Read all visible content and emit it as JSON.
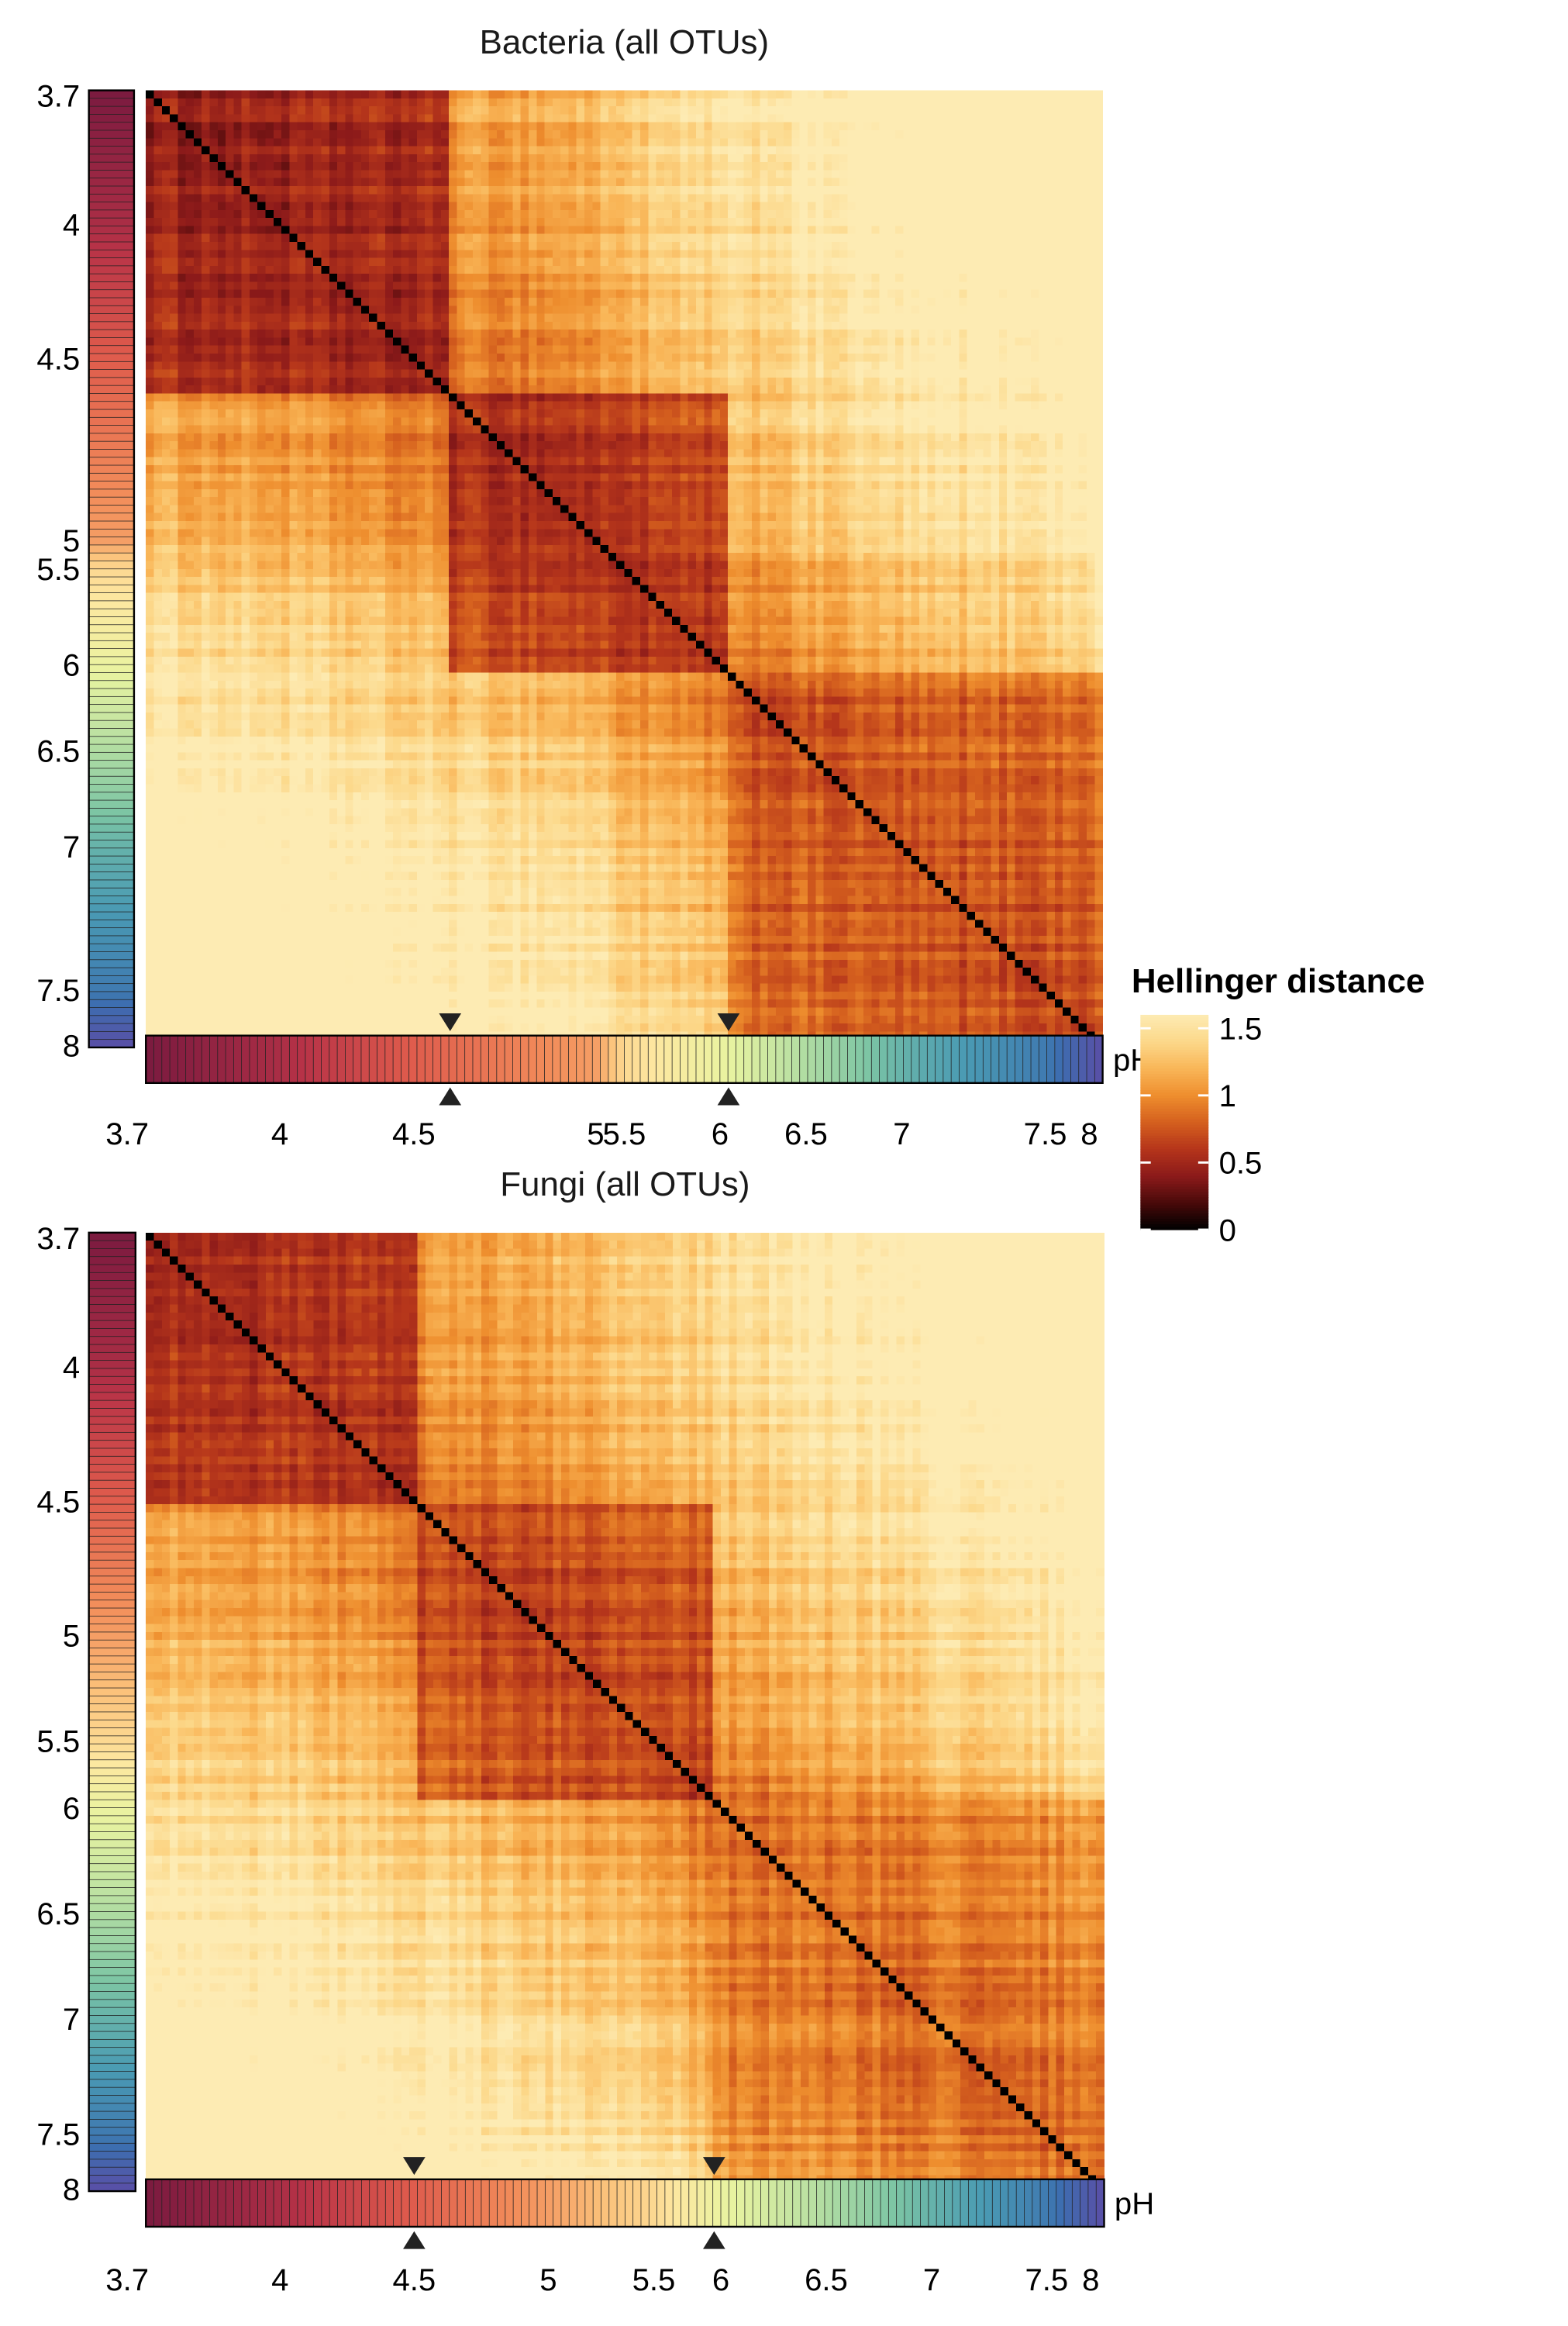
{
  "chart_data": [
    {
      "type": "heatmap",
      "title": "Bacteria (all OTUs)",
      "xlabel": "pH",
      "ylabel": "",
      "n_samples": 120,
      "ph_range": [
        3.7,
        8
      ],
      "ph_ticks": [
        3.7,
        4,
        4.5,
        5,
        5.5,
        6,
        6.5,
        7,
        7.5,
        8
      ],
      "ph_tick_labels": [
        "3.7",
        "4",
        "4.5",
        "5",
        "5.5",
        "6",
        "6.5",
        "7",
        "7.5",
        "8"
      ],
      "ph_profile": [
        [
          0,
          3.7
        ],
        [
          0.14,
          4
        ],
        [
          0.28,
          4.5
        ],
        [
          0.47,
          5
        ],
        [
          0.5,
          5.5
        ],
        [
          0.6,
          6
        ],
        [
          0.69,
          6.5
        ],
        [
          0.79,
          7
        ],
        [
          0.94,
          7.5
        ],
        [
          1,
          8
        ]
      ],
      "breakpoints_ph": [
        4.6,
        6.05
      ],
      "clusters": [
        {
          "from_ph": 3.7,
          "to_ph": 4.6,
          "within_distance": 0.45
        },
        {
          "from_ph": 4.6,
          "to_ph": 6.05,
          "within_distance": 0.55
        },
        {
          "from_ph": 6.05,
          "to_ph": 8,
          "within_distance": 0.7
        }
      ],
      "distance_range": [
        0,
        1.6
      ]
    },
    {
      "type": "heatmap",
      "title": "Fungi (all OTUs)",
      "xlabel": "pH",
      "ylabel": "",
      "n_samples": 120,
      "ph_range": [
        3.7,
        8
      ],
      "ph_ticks": [
        3.7,
        4,
        4.5,
        5,
        5.5,
        6,
        6.5,
        7,
        7.5,
        8
      ],
      "ph_tick_labels": [
        "3.7",
        "4",
        "4.5",
        "5",
        "5.5",
        "6",
        "6.5",
        "7",
        "7.5",
        "8"
      ],
      "ph_profile": [
        [
          0,
          3.7
        ],
        [
          0.14,
          4
        ],
        [
          0.28,
          4.5
        ],
        [
          0.42,
          5
        ],
        [
          0.53,
          5.5
        ],
        [
          0.6,
          6
        ],
        [
          0.71,
          6.5
        ],
        [
          0.82,
          7
        ],
        [
          0.94,
          7.5
        ],
        [
          1,
          8
        ]
      ],
      "breakpoints_ph": [
        4.5,
        5.95
      ],
      "clusters": [
        {
          "from_ph": 3.7,
          "to_ph": 4.5,
          "within_distance": 0.55
        },
        {
          "from_ph": 4.5,
          "to_ph": 5.95,
          "within_distance": 0.65
        },
        {
          "from_ph": 5.95,
          "to_ph": 8,
          "within_distance": 0.85
        }
      ],
      "distance_range": [
        0,
        1.6
      ]
    }
  ],
  "legend": {
    "title": "Hellinger distance",
    "ticks": [
      0,
      0.5,
      1,
      1.5
    ],
    "tick_labels": [
      "0",
      "0.5",
      "1",
      "1.5"
    ],
    "range": [
      0,
      1.6
    ],
    "placement": "right",
    "colormap": [
      "#000000",
      "#4a0a0a",
      "#8c1a1a",
      "#b5351b",
      "#d5601e",
      "#ee8e2e",
      "#f9b658",
      "#fcd88a",
      "#fdebb3"
    ]
  },
  "ph_colormap": [
    "#7b1a3f",
    "#b83347",
    "#de5a4c",
    "#f28c5a",
    "#fbc17a",
    "#fde7a0",
    "#e9f3a0",
    "#b9e0a2",
    "#7cc5a4",
    "#4a9bb3",
    "#3c6fb0",
    "#5a4ea6"
  ]
}
